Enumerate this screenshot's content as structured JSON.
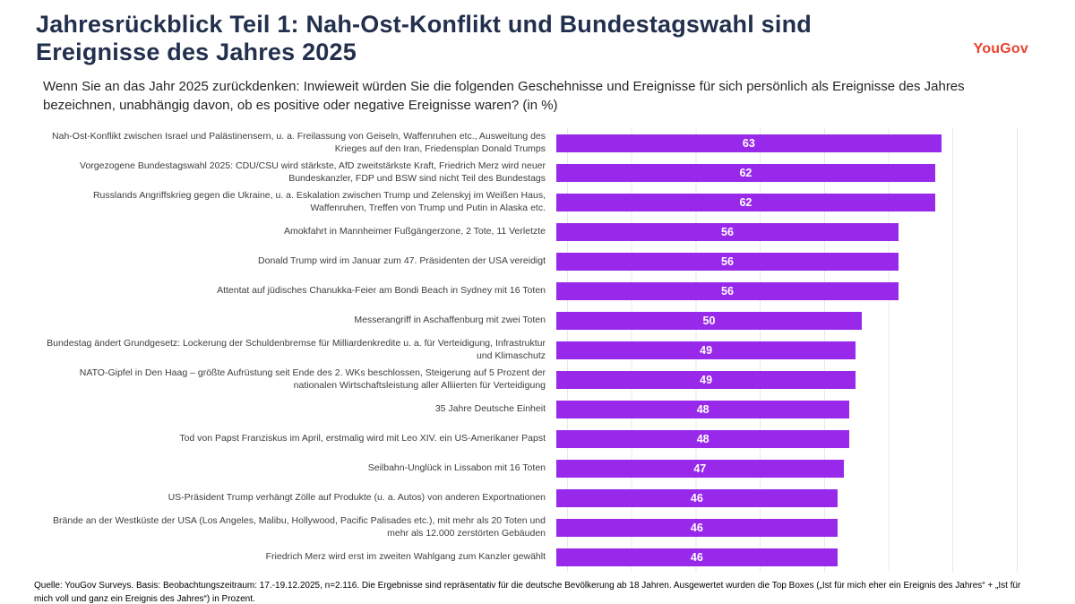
{
  "header": {
    "title_line1": "Jahresrückblick Teil 1: Nah-Ost-Konflikt und Bundestagswahl sind",
    "title_line2": "Ereignisse des Jahres 2025",
    "subtitle": "Wenn Sie an das Jahr 2025 zurückdenken: Inwieweit würden Sie die folgenden Geschehnisse und Ereignisse für sich persönlich als Ereignisse des Jahres bezeichnen, unabhängig davon, ob es positive oder negative Ereignisse waren? (in %)",
    "logo_text": "YouGov"
  },
  "chart_data": {
    "type": "bar",
    "orientation": "horizontal",
    "unit": "%",
    "title": "Jahresrückblick Teil 1: Nah-Ost-Konflikt und Bundestagswahl sind Ereignisse des Jahres 2025",
    "categories": [
      "Nah-Ost-Konflikt zwischen Israel und Palästinensern, u. a. Freilassung von Geiseln, Waffenruhen etc., Ausweitung des Krieges auf den Iran, Friedensplan Donald Trumps",
      "Vorgezogene Bundestagswahl 2025: CDU/CSU wird stärkste, AfD zweitstärkste Kraft, Friedrich Merz wird neuer Bundeskanzler, FDP und BSW sind nicht Teil des Bundestags",
      "Russlands Angriffskrieg gegen die Ukraine, u. a. Eskalation zwischen Trump und Zelenskyj im Weißen Haus, Waffenruhen, Treffen von Trump und Putin in Alaska etc.",
      "Amokfahrt in Mannheimer Fußgängerzone, 2 Tote, 11 Verletzte",
      "Donald Trump wird im Januar zum 47. Präsidenten der USA vereidigt",
      "Attentat auf jüdisches Chanukka-Feier am Bondi Beach in Sydney mit 16 Toten",
      "Messerangriff in Aschaffenburg mit zwei Toten",
      "Bundestag ändert Grundgesetz: Lockerung der Schuldenbremse für Milliardenkredite u. a. für Verteidigung, Infrastruktur und Klimaschutz",
      "NATO-Gipfel in Den Haag – größte Aufrüstung seit Ende des 2. WKs beschlossen, Steigerung auf 5 Prozent der nationalen Wirtschaftsleistung aller Alliierten für Verteidigung",
      "35 Jahre Deutsche Einheit",
      "Tod von Papst Franziskus im April, erstmalig wird mit Leo XIV. ein US-Amerikaner Papst",
      "Seilbahn-Unglück in Lissabon mit 16 Toten",
      "US-Präsident Trump verhängt Zölle auf Produkte (u. a. Autos) von anderen Exportnationen",
      "Brände an der Westküste der USA (Los Angeles, Malibu, Hollywood, Pacific Palisades etc.), mit mehr als 20 Toten und mehr als 12.000 zerstörten Gebäuden",
      "Friedrich Merz wird erst im zweiten Wahlgang zum Kanzler gewählt"
    ],
    "values": [
      63,
      62,
      62,
      56,
      56,
      56,
      50,
      49,
      49,
      48,
      48,
      47,
      46,
      46,
      46
    ],
    "xlabel": "",
    "ylabel": "",
    "xlim": [
      0,
      78
    ],
    "grid": "vertical gridlines every 10 units, light gray",
    "legend": "none",
    "value_labels": "white, centered inside bars"
  },
  "footer": {
    "source": "Quelle: YouGov Surveys. Basis: Beobachtungszeitraum: 17.-19.12.2025, n=2.116. Die Ergebnisse sind repräsentativ für die deutsche Bevölkerung ab 18 Jahren. Ausgewertet wurden die Top Boxes („Ist für mich eher ein Ereignis des Jahres“ + „Ist für mich voll und ganz ein Ereignis des Jahres“) in Prozent."
  },
  "colors": {
    "title": "#22304E",
    "logo": "#E8432E",
    "bar": "#9929EA",
    "gridline": "#E8E8E8",
    "label_text": "#3D3D3D"
  }
}
